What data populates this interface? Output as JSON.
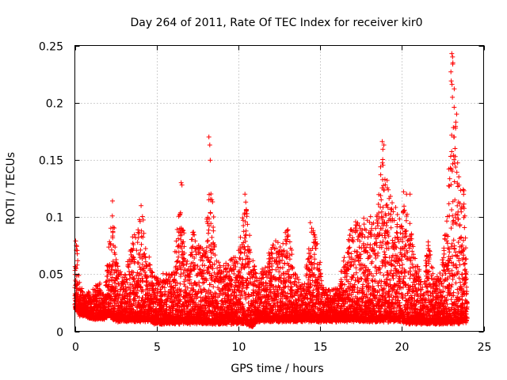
{
  "chart_data": {
    "type": "scatter",
    "title": "Day 264 of 2011, Rate Of TEC Index for receiver kir0",
    "xlabel": "GPS time / hours",
    "ylabel": "ROTI / TECUs",
    "xlim": [
      0,
      25
    ],
    "ylim": [
      0,
      0.25
    ],
    "xticks": [
      "0",
      "5",
      "10",
      "15",
      "20",
      "25"
    ],
    "yticks": [
      "0",
      "0.05",
      "0.1",
      "0.15",
      "0.2",
      "0.25"
    ],
    "grid": true,
    "marker": "plus",
    "color": "#ff0000",
    "envelope": [
      [
        0.0,
        0.02,
        0.055
      ],
      [
        0.1,
        0.02,
        0.08
      ],
      [
        0.3,
        0.015,
        0.04
      ],
      [
        0.6,
        0.015,
        0.035
      ],
      [
        1.0,
        0.012,
        0.033
      ],
      [
        1.4,
        0.012,
        0.045
      ],
      [
        1.8,
        0.012,
        0.03
      ],
      [
        2.1,
        0.015,
        0.08
      ],
      [
        2.3,
        0.012,
        0.114
      ],
      [
        2.6,
        0.01,
        0.06
      ],
      [
        3.0,
        0.01,
        0.045
      ],
      [
        3.4,
        0.01,
        0.075
      ],
      [
        3.8,
        0.01,
        0.1
      ],
      [
        4.1,
        0.01,
        0.11
      ],
      [
        4.4,
        0.01,
        0.07
      ],
      [
        4.8,
        0.008,
        0.05
      ],
      [
        5.2,
        0.008,
        0.045
      ],
      [
        5.6,
        0.008,
        0.055
      ],
      [
        6.0,
        0.008,
        0.05
      ],
      [
        6.5,
        0.008,
        0.13
      ],
      [
        6.8,
        0.008,
        0.06
      ],
      [
        7.2,
        0.008,
        0.09
      ],
      [
        7.6,
        0.008,
        0.075
      ],
      [
        8.0,
        0.008,
        0.08
      ],
      [
        8.3,
        0.008,
        0.17
      ],
      [
        8.6,
        0.008,
        0.065
      ],
      [
        9.0,
        0.008,
        0.055
      ],
      [
        9.5,
        0.008,
        0.065
      ],
      [
        10.0,
        0.008,
        0.07
      ],
      [
        10.4,
        0.008,
        0.12
      ],
      [
        10.8,
        0.005,
        0.07
      ],
      [
        11.2,
        0.01,
        0.05
      ],
      [
        11.7,
        0.01,
        0.06
      ],
      [
        12.2,
        0.01,
        0.08
      ],
      [
        12.6,
        0.01,
        0.075
      ],
      [
        13.0,
        0.01,
        0.095
      ],
      [
        13.5,
        0.01,
        0.05
      ],
      [
        14.0,
        0.01,
        0.04
      ],
      [
        14.5,
        0.01,
        0.095
      ],
      [
        14.8,
        0.01,
        0.08
      ],
      [
        15.2,
        0.01,
        0.04
      ],
      [
        15.7,
        0.01,
        0.035
      ],
      [
        16.2,
        0.01,
        0.045
      ],
      [
        16.6,
        0.01,
        0.08
      ],
      [
        17.0,
        0.01,
        0.095
      ],
      [
        17.5,
        0.01,
        0.1
      ],
      [
        18.0,
        0.01,
        0.11
      ],
      [
        18.4,
        0.01,
        0.09
      ],
      [
        18.8,
        0.01,
        0.165
      ],
      [
        19.1,
        0.01,
        0.13
      ],
      [
        19.5,
        0.01,
        0.115
      ],
      [
        19.9,
        0.01,
        0.1
      ],
      [
        20.3,
        0.008,
        0.12
      ],
      [
        20.7,
        0.008,
        0.08
      ],
      [
        21.0,
        0.008,
        0.06
      ],
      [
        21.3,
        0.008,
        0.035
      ],
      [
        21.6,
        0.008,
        0.08
      ],
      [
        22.0,
        0.008,
        0.045
      ],
      [
        22.4,
        0.008,
        0.055
      ],
      [
        22.8,
        0.008,
        0.11
      ],
      [
        23.1,
        0.008,
        0.243
      ],
      [
        23.3,
        0.008,
        0.19
      ],
      [
        23.5,
        0.008,
        0.135
      ],
      [
        23.8,
        0.008,
        0.125
      ],
      [
        24.0,
        0.01,
        0.04
      ]
    ],
    "peaks": [
      [
        0.05,
        0.079
      ],
      [
        2.3,
        0.114
      ],
      [
        4.05,
        0.11
      ],
      [
        6.5,
        0.13
      ],
      [
        6.55,
        0.128
      ],
      [
        8.2,
        0.17
      ],
      [
        8.25,
        0.163
      ],
      [
        8.2,
        0.115
      ],
      [
        10.4,
        0.12
      ],
      [
        10.45,
        0.113
      ],
      [
        14.4,
        0.095
      ],
      [
        18.8,
        0.166
      ],
      [
        18.9,
        0.163
      ],
      [
        19.1,
        0.132
      ],
      [
        20.1,
        0.122
      ],
      [
        20.5,
        0.12
      ],
      [
        23.05,
        0.243
      ],
      [
        23.1,
        0.24
      ],
      [
        23.12,
        0.235
      ],
      [
        23.0,
        0.227
      ],
      [
        23.02,
        0.219
      ],
      [
        23.2,
        0.196
      ],
      [
        23.35,
        0.19
      ],
      [
        23.3,
        0.183
      ],
      [
        23.2,
        0.17
      ],
      [
        23.25,
        0.16
      ],
      [
        23.8,
        0.123
      ],
      [
        22.9,
        0.101
      ]
    ]
  }
}
